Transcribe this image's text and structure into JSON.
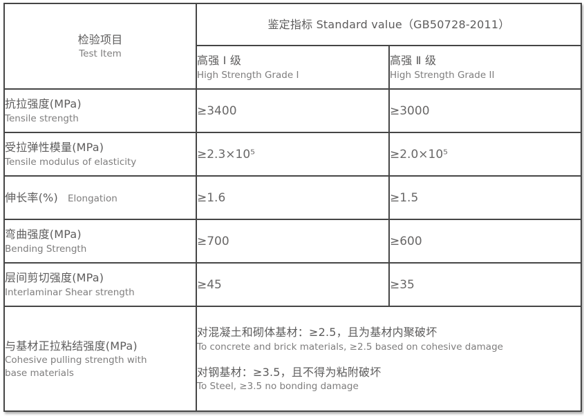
{
  "table": {
    "header": {
      "test_item": {
        "zh": "检验项目",
        "en": "Test Item"
      },
      "standard_value": "鉴定指标 Standard value（GB50728-2011）",
      "grades": [
        {
          "zh": "高强 Ⅰ 级",
          "en": "High Strength Grade I"
        },
        {
          "zh": "高强 Ⅱ 级",
          "en": "High Strength Grade II"
        }
      ]
    },
    "rows": [
      {
        "item": {
          "zh": "抗拉强度(MPa)",
          "en": "Tensile strength"
        },
        "grade1": "≥3400",
        "grade2": "≥3000"
      },
      {
        "item": {
          "zh": "受拉弹性模量(MPa)",
          "en": "Tensile modulus of elasticity"
        },
        "grade1": "≥2.3×10⁵",
        "grade2": "≥2.0×10⁵"
      },
      {
        "item": {
          "zh": "伸长率(%)",
          "en": "Elongation"
        },
        "grade1": "≥1.6",
        "grade2": "≥1.5"
      },
      {
        "item": {
          "zh": "弯曲强度(MPa)",
          "en": "Bending Strength"
        },
        "grade1": "≥700",
        "grade2": "≥600"
      },
      {
        "item": {
          "zh": "层间剪切强度(MPa)",
          "en": "Interlaminar Shear strength"
        },
        "grade1": "≥45",
        "grade2": "≥35"
      }
    ],
    "last_row": {
      "item": {
        "zh": "与基材正拉粘结强度(MPa)",
        "en_line1": "Cohesive pulling strength with",
        "en_line2": "base materials"
      },
      "notes": [
        {
          "zh": "对混凝土和砌体基材：≥2.5，且为基材内聚破坏",
          "en": "To concrete and brick materials, ≥2.5 based on cohesive damage"
        },
        {
          "zh": "对钢基材：≥3.5，且不得为粘附破坏",
          "en": "To Steel, ≥3.5 no bonding damage"
        }
      ]
    },
    "colors": {
      "border": "#454545",
      "text_zh": "#5d5c5c",
      "text_en": "#7e7d7d",
      "background": "#ffffff"
    }
  }
}
